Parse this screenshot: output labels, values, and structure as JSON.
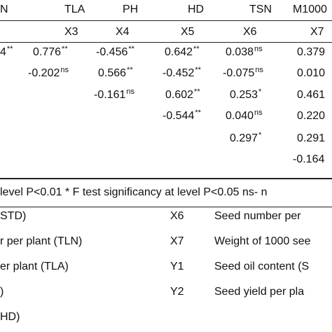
{
  "header": {
    "columns": [
      "N",
      "TLA",
      "PH",
      "HD",
      "TSN",
      "M1000"
    ],
    "codes": [
      "X3",
      "X4",
      "X5",
      "X6",
      "X7"
    ]
  },
  "rows": [
    [
      {
        "v": "4",
        "s": "**"
      },
      {
        "v": "0.776",
        "s": "**"
      },
      {
        "v": "-0.456",
        "s": "**"
      },
      {
        "v": "0.642",
        "s": "**"
      },
      {
        "v": "0.038",
        "s": "ns"
      },
      {
        "v": "0.379",
        "s": ""
      }
    ],
    [
      {
        "v": "-0.202",
        "s": "ns"
      },
      {
        "v": "0.566",
        "s": "**"
      },
      {
        "v": "-0.452",
        "s": "**"
      },
      {
        "v": "-0.075",
        "s": "ns"
      },
      {
        "v": "0.010",
        "s": ""
      }
    ],
    [
      {
        "v": "-0.161",
        "s": "ns"
      },
      {
        "v": "0.602",
        "s": "**"
      },
      {
        "v": "0.253",
        "s": "*"
      },
      {
        "v": "0.461",
        "s": ""
      }
    ],
    [
      {
        "v": "-0.544",
        "s": "**"
      },
      {
        "v": "0.040",
        "s": "ns"
      },
      {
        "v": "0.220",
        "s": ""
      }
    ],
    [
      {
        "v": "0.297",
        "s": "*"
      },
      {
        "v": "0.291",
        "s": ""
      }
    ],
    [
      {
        "v": "-0.164",
        "s": ""
      }
    ]
  ],
  "footnote": "level P<0.01 * F test significancy at level P<0.05 ns- n",
  "legend": [
    {
      "left": "STD)",
      "code": "X6",
      "right": "Seed number per"
    },
    {
      "left": "r per plant (TLN)",
      "code": "X7",
      "right": "Weight of 1000 see"
    },
    {
      "left": "er plant (TLA)",
      "code": "Y1",
      "right": "Seed oil content (S"
    },
    {
      "left": ")",
      "code": "Y2",
      "right": "Seed yield per pla"
    },
    {
      "left": "HD)",
      "code": "",
      "right": ""
    }
  ]
}
